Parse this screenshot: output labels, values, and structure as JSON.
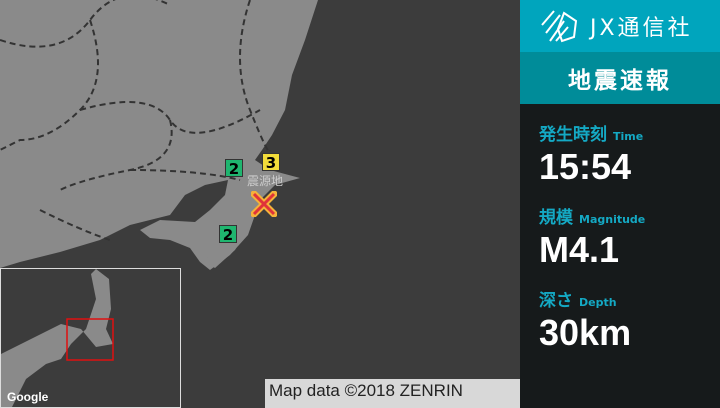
{
  "brand": {
    "name": "JX通信社",
    "logo": "jx-logo"
  },
  "title": "地震速報",
  "time": {
    "label": "発生時刻",
    "label_en": "Time",
    "value": "15:54"
  },
  "magnitude": {
    "label": "規模",
    "label_en": "Magnitude",
    "value": "M4.1"
  },
  "depth": {
    "label": "深さ",
    "label_en": "Depth",
    "value": "30km"
  },
  "map": {
    "epicenter_label": "震源地",
    "intensities": [
      {
        "value": "2",
        "color": "#1fb56f"
      },
      {
        "value": "3",
        "color": "#f2dc3a"
      },
      {
        "value": "2",
        "color": "#1fb56f"
      }
    ],
    "attribution": "Map data ©2018 ZENRIN",
    "google": "Google"
  },
  "colors": {
    "accent": "#00a5bd",
    "title_bg": "#008c99",
    "label": "#14a9c4",
    "epicenter": "#e0333a"
  }
}
